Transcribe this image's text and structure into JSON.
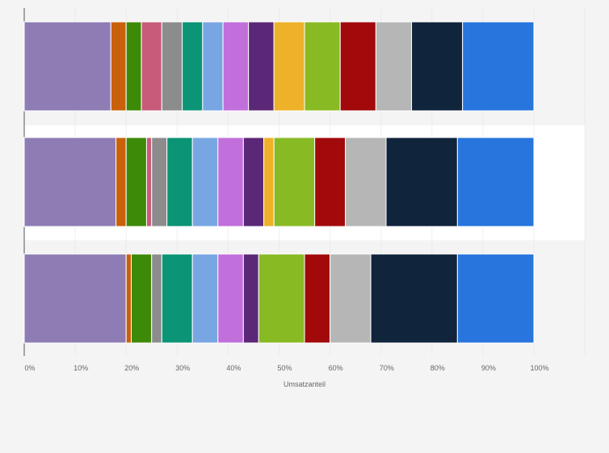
{
  "chart_data": {
    "type": "bar",
    "orientation": "horizontal",
    "stacked": true,
    "xlabel": "Umsatzanteil",
    "xlim": [
      0,
      100
    ],
    "ticks": [
      "0%",
      "10%",
      "20%",
      "30%",
      "40%",
      "50%",
      "60%",
      "70%",
      "80%",
      "90%",
      "100%"
    ],
    "grid": true,
    "rows": 3,
    "series": [
      {
        "color": "#8e7cb5",
        "values": [
          17,
          18,
          20
        ]
      },
      {
        "color": "#c9610b",
        "values": [
          3,
          2,
          1
        ]
      },
      {
        "color": "#3d8a08",
        "values": [
          3,
          4,
          4
        ]
      },
      {
        "color": "#c95b7a",
        "values": [
          4,
          1,
          0
        ]
      },
      {
        "color": "#8c8c8c",
        "values": [
          4,
          3,
          2
        ]
      },
      {
        "color": "#0b9475",
        "values": [
          4,
          5,
          6
        ]
      },
      {
        "color": "#78a6e3",
        "values": [
          4,
          5,
          5
        ]
      },
      {
        "color": "#c16fdb",
        "values": [
          5,
          5,
          5
        ]
      },
      {
        "color": "#5b2877",
        "values": [
          5,
          4,
          3
        ]
      },
      {
        "color": "#edb12a",
        "values": [
          6,
          2,
          0
        ]
      },
      {
        "color": "#88ba24",
        "values": [
          7,
          8,
          9
        ]
      },
      {
        "color": "#a1090b",
        "values": [
          7,
          6,
          5
        ]
      },
      {
        "color": "#b6b6b6",
        "values": [
          7,
          8,
          8
        ]
      },
      {
        "color": "#10243c",
        "values": [
          10,
          14,
          17
        ]
      },
      {
        "color": "#2775dd",
        "values": [
          14,
          15,
          15
        ]
      }
    ]
  }
}
